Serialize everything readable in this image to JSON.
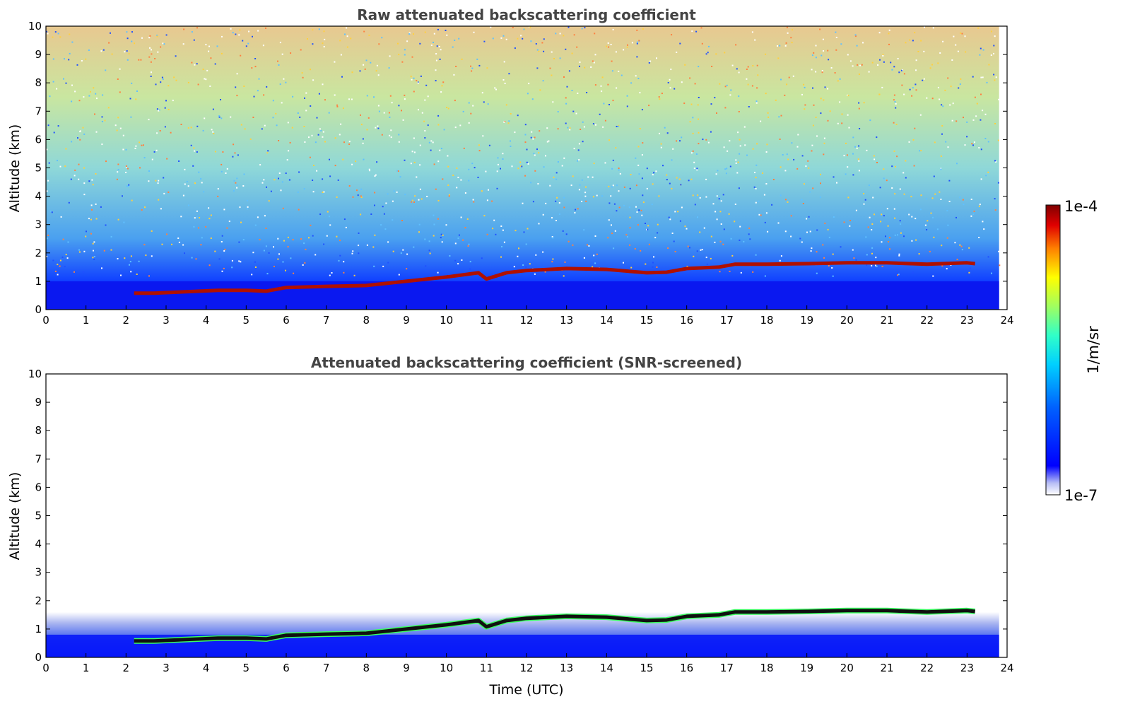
{
  "chart_data": [
    {
      "type": "heatmap",
      "title": "Raw attenuated backscattering coefficient",
      "xlabel": "",
      "ylabel": "Altitude (km)",
      "xlim": [
        0,
        24
      ],
      "ylim": [
        0,
        10
      ],
      "xticks": [
        "0",
        "1",
        "2",
        "3",
        "4",
        "5",
        "6",
        "7",
        "8",
        "9",
        "10",
        "11",
        "12",
        "13",
        "14",
        "15",
        "16",
        "17",
        "18",
        "19",
        "20",
        "21",
        "22",
        "23",
        "24"
      ],
      "yticks": [
        "0",
        "1",
        "2",
        "3",
        "4",
        "5",
        "6",
        "7",
        "8",
        "9",
        "10"
      ],
      "data_end_time": 23.8,
      "cloud_base_layer": {
        "time": [
          2.2,
          2.7,
          4.3,
          5.0,
          5.5,
          6.0,
          7.0,
          8.0,
          9.0,
          10.0,
          10.8,
          11.0,
          11.5,
          12.0,
          13.0,
          14.0,
          15.0,
          15.5,
          16.0,
          16.8,
          17.2,
          18.0,
          19.0,
          20.0,
          21.0,
          22.0,
          23.0,
          23.2
        ],
        "altitude_km": [
          0.58,
          0.58,
          0.68,
          0.68,
          0.65,
          0.78,
          0.82,
          0.85,
          1.0,
          1.15,
          1.3,
          1.08,
          1.3,
          1.38,
          1.45,
          1.42,
          1.3,
          1.32,
          1.45,
          1.5,
          1.6,
          1.6,
          1.62,
          1.65,
          1.65,
          1.6,
          1.65,
          1.62
        ]
      },
      "colorbar": {
        "min_label": "1e-7",
        "max_label": "1e-4",
        "label": "1/m/sr",
        "colormap": "jet"
      }
    },
    {
      "type": "heatmap",
      "title": "Attenuated backscattering coefficient (SNR-screened)",
      "xlabel": "Time (UTC)",
      "ylabel": "Altitude (km)",
      "xlim": [
        0,
        24
      ],
      "ylim": [
        0,
        10
      ],
      "xticks": [
        "0",
        "1",
        "2",
        "3",
        "4",
        "5",
        "6",
        "7",
        "8",
        "9",
        "10",
        "11",
        "12",
        "13",
        "14",
        "15",
        "16",
        "17",
        "18",
        "19",
        "20",
        "21",
        "22",
        "23",
        "24"
      ],
      "yticks": [
        "0",
        "1",
        "2",
        "3",
        "4",
        "5",
        "6",
        "7",
        "8",
        "9",
        "10"
      ],
      "data_end_time": 23.8,
      "cloud_base_layer": {
        "time": [
          2.2,
          2.7,
          4.3,
          5.0,
          5.5,
          6.0,
          7.0,
          8.0,
          9.0,
          10.0,
          10.8,
          11.0,
          11.5,
          12.0,
          13.0,
          14.0,
          15.0,
          15.5,
          16.0,
          16.8,
          17.2,
          18.0,
          19.0,
          20.0,
          21.0,
          22.0,
          23.0,
          23.2
        ],
        "altitude_km": [
          0.58,
          0.58,
          0.68,
          0.68,
          0.65,
          0.78,
          0.82,
          0.85,
          1.0,
          1.15,
          1.3,
          1.08,
          1.3,
          1.38,
          1.45,
          1.42,
          1.3,
          1.32,
          1.45,
          1.5,
          1.6,
          1.6,
          1.62,
          1.65,
          1.65,
          1.6,
          1.65,
          1.62
        ]
      },
      "colorbar": {
        "min_label": "1e-7",
        "max_label": "1e-4",
        "label": "1/m/sr",
        "colormap": "jet"
      }
    }
  ]
}
